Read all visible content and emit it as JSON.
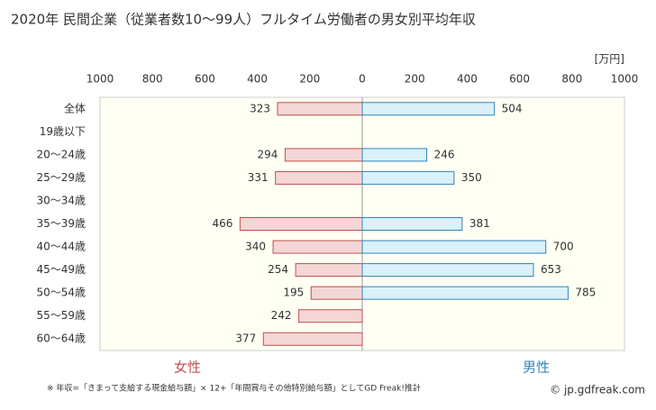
{
  "chart_data": {
    "type": "butterfly",
    "title": "2020年 民間企業（従業者数10〜99人）フルタイム労働者の男女別平均年収",
    "unit": "[万円]",
    "categories": [
      "全体",
      "19歳以下",
      "20〜24歳",
      "25〜29歳",
      "30〜34歳",
      "35〜39歳",
      "40〜44歳",
      "45〜49歳",
      "50〜54歳",
      "55〜59歳",
      "60〜64歳"
    ],
    "series": [
      {
        "name": "女性",
        "color": "#f4d6d6",
        "stroke": "#c0504d",
        "label_color": "#c0504d",
        "side": "left",
        "values": [
          323,
          null,
          294,
          331,
          null,
          466,
          340,
          254,
          195,
          242,
          377
        ]
      },
      {
        "name": "男性",
        "color": "#daf1fb",
        "stroke": "#2e86b8",
        "label_color": "#2e86b8",
        "side": "right",
        "values": [
          504,
          null,
          246,
          350,
          null,
          381,
          700,
          653,
          785,
          null,
          null
        ]
      }
    ],
    "xlim": [
      0,
      1000
    ],
    "left_xticks": [
      1000,
      800,
      600,
      400,
      200
    ],
    "xticks": [
      0,
      200,
      400,
      600,
      800,
      1000
    ],
    "grid": false,
    "note": "※ 年収=「きまって支給する現金給与額」× 12+「年間賞与その他特別給与額」としてGD Freak!推計",
    "source": "© jp.gdfreak.com"
  }
}
